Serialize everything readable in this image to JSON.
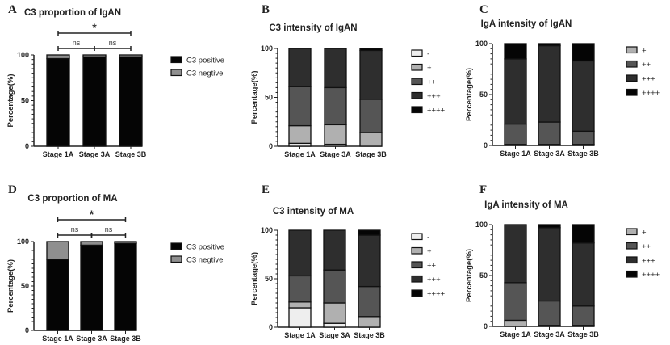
{
  "colors": {
    "neg": "#eeeeee",
    "plus1": "#b0b0b0",
    "plus2": "#555555",
    "plus3": "#2e2e2e",
    "plus4": "#050505",
    "pos": "#050505",
    "negtive": "#8f8f8f",
    "axis": "#222222"
  },
  "chart_data": [
    {
      "panel_label": "A",
      "type": "bar",
      "stacked": true,
      "title": "C3 proportion of IgAN",
      "ylabel": "Percentage(%)",
      "ylim": [
        0,
        100
      ],
      "yticks": [
        "0",
        "50",
        "100"
      ],
      "categories": [
        "Stage 1A",
        "Stage 3A",
        "Stage 3B"
      ],
      "series": [
        {
          "name": "C3 positive",
          "color_key": "pos",
          "values": [
            96,
            98,
            98
          ]
        },
        {
          "name": "C3 negtive",
          "color_key": "negtive",
          "values": [
            4,
            2,
            2
          ]
        }
      ],
      "significance": [
        {
          "label": "*",
          "from": 0,
          "to": 2
        },
        {
          "label": "ns",
          "from": 0,
          "to": 1
        },
        {
          "label": "ns",
          "from": 1,
          "to": 2
        }
      ],
      "legend": "right"
    },
    {
      "panel_label": "B",
      "type": "bar",
      "stacked": true,
      "title": "C3 intensity  of IgAN",
      "ylabel": "Percentage(%)",
      "ylim": [
        0,
        100
      ],
      "yticks": [
        "0",
        "50",
        "100"
      ],
      "categories": [
        "Stage 1A",
        "Stage 3A",
        "Stage 3B"
      ],
      "series": [
        {
          "name": "-",
          "color_key": "neg",
          "values": [
            3,
            2,
            0
          ]
        },
        {
          "name": "+",
          "color_key": "plus1",
          "values": [
            18,
            20,
            14
          ]
        },
        {
          "name": "++",
          "color_key": "plus2",
          "values": [
            40,
            38,
            34
          ]
        },
        {
          "name": "+++",
          "color_key": "plus3",
          "values": [
            39,
            40,
            50
          ]
        },
        {
          "name": "++++",
          "color_key": "plus4",
          "values": [
            0,
            0,
            2
          ]
        }
      ],
      "significance": [],
      "legend": "right"
    },
    {
      "panel_label": "C",
      "type": "bar",
      "stacked": true,
      "title": "IgA intensity of IgAN",
      "ylabel": "Percentage(%)",
      "ylim": [
        0,
        100
      ],
      "yticks": [
        "0",
        "50",
        "100"
      ],
      "categories": [
        "Stage 1A",
        "Stage 3A",
        "Stage 3B"
      ],
      "series": [
        {
          "name": "+",
          "color_key": "plus1",
          "values": [
            1,
            1,
            1
          ]
        },
        {
          "name": "++",
          "color_key": "plus2",
          "values": [
            20,
            22,
            13
          ]
        },
        {
          "name": "+++",
          "color_key": "plus3",
          "values": [
            64,
            75,
            69
          ]
        },
        {
          "name": "++++",
          "color_key": "plus4",
          "values": [
            15,
            2,
            17
          ]
        }
      ],
      "significance": [],
      "legend": "right"
    },
    {
      "panel_label": "D",
      "type": "bar",
      "stacked": true,
      "title": "C3 proportion of MA",
      "ylabel": "Percentage(%)",
      "ylim": [
        0,
        100
      ],
      "yticks": [
        "0",
        "50",
        "100"
      ],
      "categories": [
        "Stage 1A",
        "Stage 3A",
        "Stage 3B"
      ],
      "series": [
        {
          "name": "C3 positive",
          "color_key": "pos",
          "values": [
            80,
            96,
            98
          ]
        },
        {
          "name": "C3 negtive",
          "color_key": "negtive",
          "values": [
            20,
            4,
            2
          ]
        }
      ],
      "significance": [
        {
          "label": "*",
          "from": 0,
          "to": 2
        },
        {
          "label": "ns",
          "from": 0,
          "to": 1
        },
        {
          "label": "ns",
          "from": 1,
          "to": 2
        }
      ],
      "legend": "right"
    },
    {
      "panel_label": "E",
      "type": "bar",
      "stacked": true,
      "title": "C3 intensity  of MA",
      "ylabel": "Percentage(%)",
      "ylim": [
        0,
        100
      ],
      "yticks": [
        "0",
        "50",
        "100"
      ],
      "categories": [
        "Stage 1A",
        "Stage 3A",
        "Stage 3B"
      ],
      "series": [
        {
          "name": "-",
          "color_key": "neg",
          "values": [
            20,
            4,
            0
          ]
        },
        {
          "name": "+",
          "color_key": "plus1",
          "values": [
            6,
            21,
            11
          ]
        },
        {
          "name": "++",
          "color_key": "plus2",
          "values": [
            27,
            34,
            31
          ]
        },
        {
          "name": "+++",
          "color_key": "plus3",
          "values": [
            47,
            41,
            53
          ]
        },
        {
          "name": "++++",
          "color_key": "plus4",
          "values": [
            0,
            0,
            5
          ]
        }
      ],
      "significance": [],
      "legend": "right"
    },
    {
      "panel_label": "F",
      "type": "bar",
      "stacked": true,
      "title": "IgA intensity of MA",
      "ylabel": "Percentage(%)",
      "ylim": [
        0,
        100
      ],
      "yticks": [
        "0",
        "50",
        "100"
      ],
      "categories": [
        "Stage 1A",
        "Stage 3A",
        "Stage 3B"
      ],
      "series": [
        {
          "name": "+",
          "color_key": "plus1",
          "values": [
            6,
            1,
            1
          ]
        },
        {
          "name": "++",
          "color_key": "plus2",
          "values": [
            37,
            24,
            19
          ]
        },
        {
          "name": "+++",
          "color_key": "plus3",
          "values": [
            57,
            72,
            62
          ]
        },
        {
          "name": "++++",
          "color_key": "plus4",
          "values": [
            0,
            3,
            18
          ]
        }
      ],
      "significance": [],
      "legend": "right"
    }
  ]
}
